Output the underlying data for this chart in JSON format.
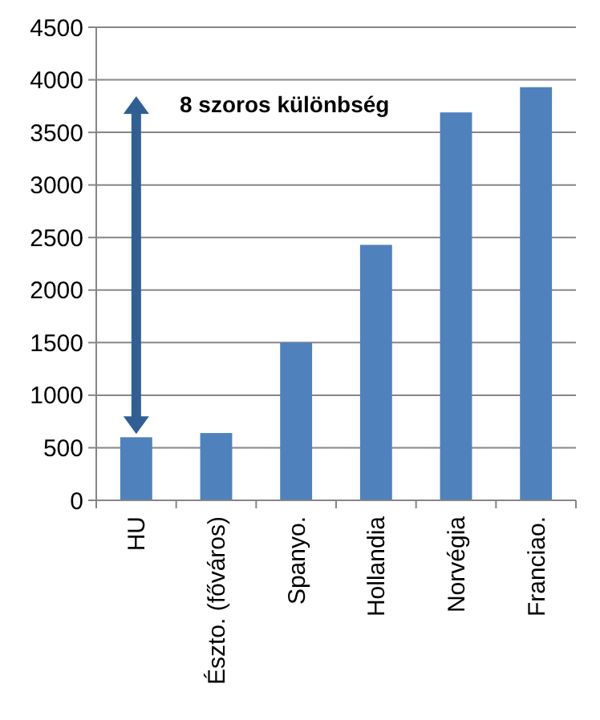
{
  "chart_data": {
    "type": "bar",
    "categories": [
      "HU",
      "Észto. (főváros)",
      "Spanyo.",
      "Hollandia",
      "Norvégia",
      "Franciao."
    ],
    "values": [
      600,
      640,
      1500,
      2430,
      3690,
      3930
    ],
    "color": "#4f81bd",
    "ylim": [
      0,
      4500
    ],
    "yticks": [
      0,
      500,
      1000,
      1500,
      2000,
      2500,
      3000,
      3500,
      4000,
      4500
    ],
    "grid": "y",
    "annotations": [
      "8 szoros különbség"
    ]
  }
}
